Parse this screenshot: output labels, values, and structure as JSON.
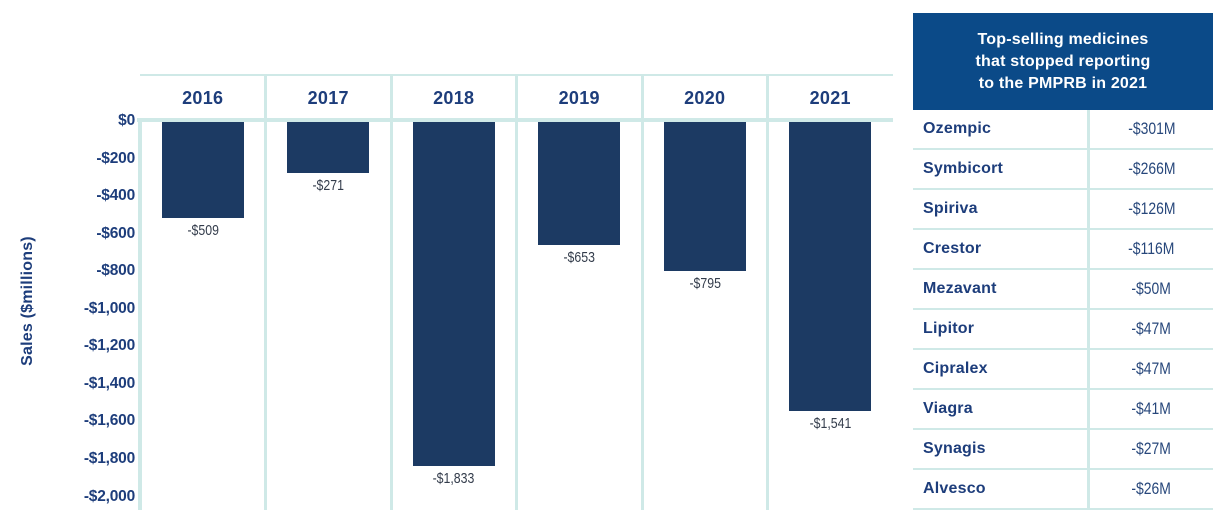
{
  "chart_data": {
    "type": "bar",
    "categories": [
      "2016",
      "2017",
      "2018",
      "2019",
      "2020",
      "2021"
    ],
    "values": [
      -509,
      -271,
      -1833,
      -653,
      -795,
      -1541
    ],
    "bar_labels": [
      "-$509",
      "-$271",
      "-$1,833",
      "-$653",
      "-$795",
      "-$1,541"
    ],
    "ylabel": "Sales ($millions)",
    "ylim": [
      -2000,
      0
    ],
    "ytick_labels": [
      "$0",
      "-$200",
      "-$400",
      "-$600",
      "-$800",
      "-$1,000",
      "-$1,200",
      "-$1,400",
      "-$1,600",
      "-$1,800",
      "-$2,000"
    ],
    "ytick_values": [
      0,
      -200,
      -400,
      -600,
      -800,
      -1000,
      -1200,
      -1400,
      -1600,
      -1800,
      -2000
    ],
    "grid": "column-dividers-only",
    "legend": "none",
    "bar_color": "#1c3a63"
  },
  "side_table": {
    "title": "Top-selling medicines\nthat stopped reporting\nto the PMPRB in 2021",
    "rows": [
      {
        "name": "Ozempic",
        "value": "-$301M"
      },
      {
        "name": "Symbicort",
        "value": "-$266M"
      },
      {
        "name": "Spiriva",
        "value": "-$126M"
      },
      {
        "name": "Crestor",
        "value": "-$116M"
      },
      {
        "name": "Mezavant",
        "value": "-$50M"
      },
      {
        "name": "Lipitor",
        "value": "-$47M"
      },
      {
        "name": "Cipralex",
        "value": "-$47M"
      },
      {
        "name": "Viagra",
        "value": "-$41M"
      },
      {
        "name": "Synagis",
        "value": "-$27M"
      },
      {
        "name": "Alvesco",
        "value": "-$26M"
      }
    ]
  },
  "colors": {
    "bar_navy": "#1c3a63",
    "header_blue": "#0b4a88",
    "label_navy": "#1d3d7b",
    "chart_value_text": "#333c4b",
    "table_value_text": "#27477b",
    "line_cyan": "#cfe9e7"
  }
}
